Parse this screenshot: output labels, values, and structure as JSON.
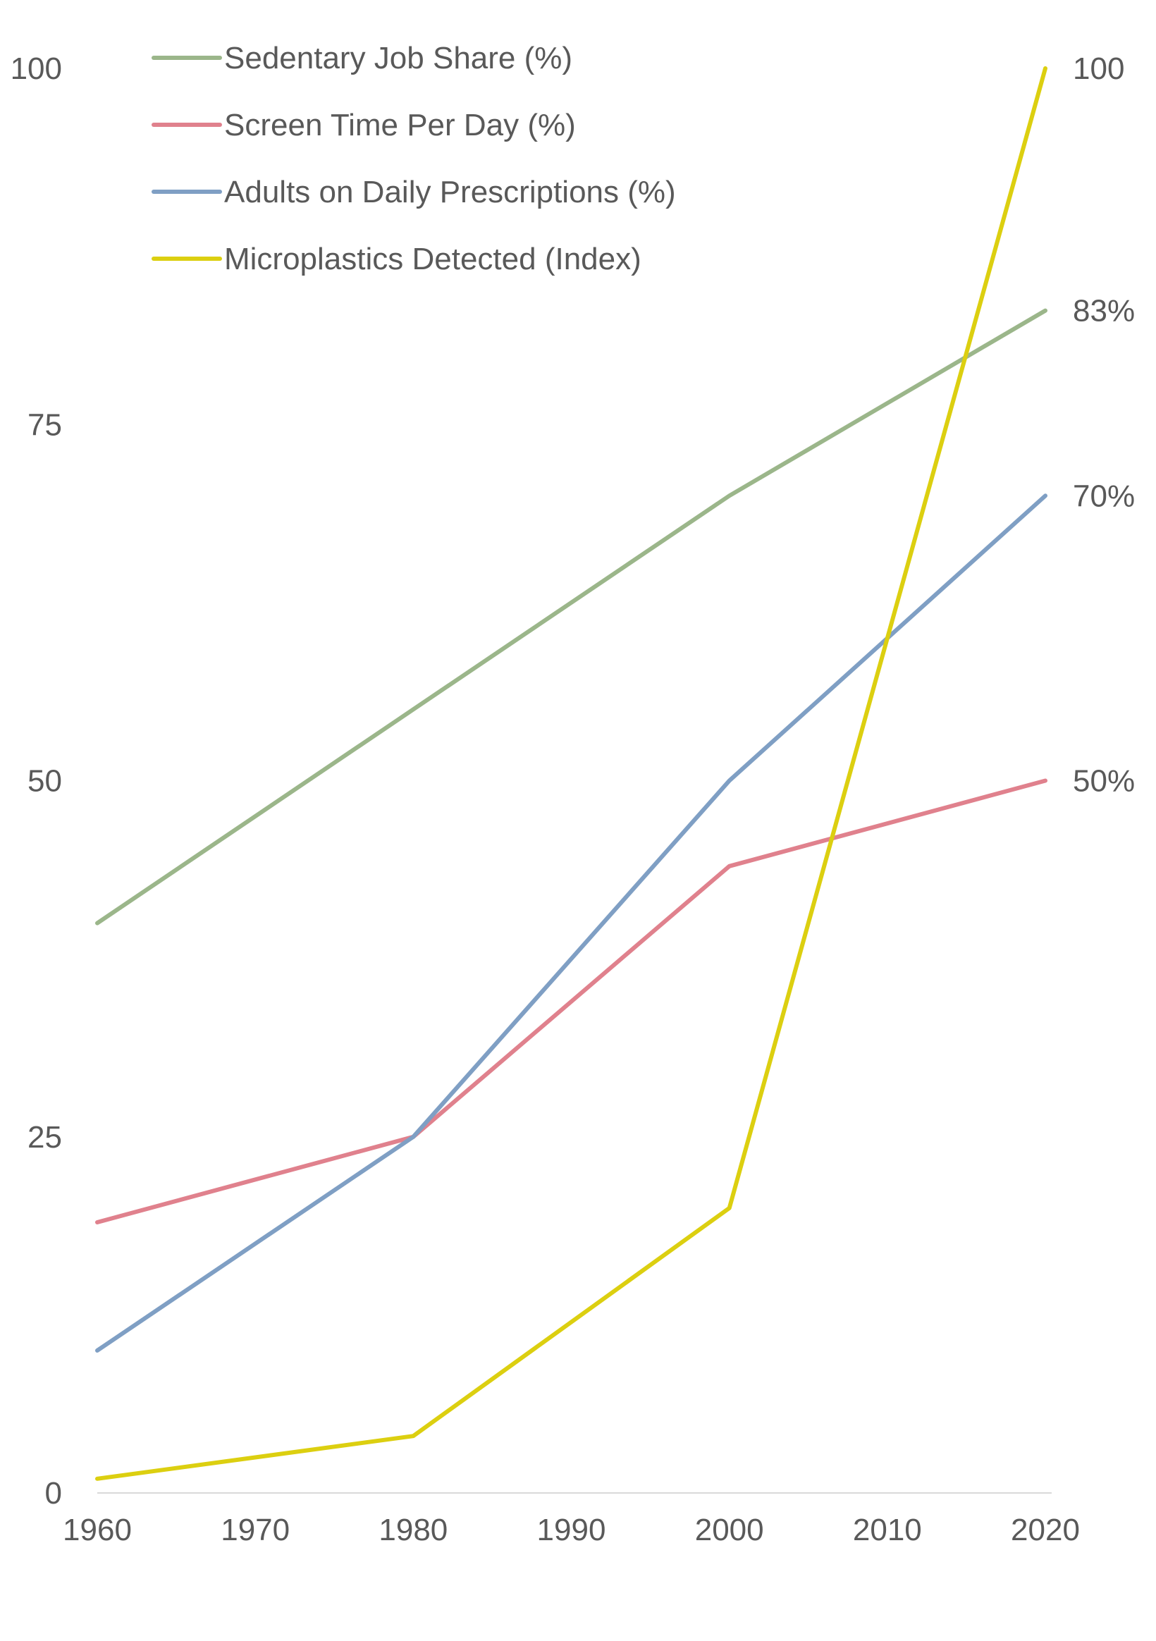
{
  "chart_data": {
    "type": "line",
    "title": "",
    "xlabel": "",
    "ylabel": "",
    "x": [
      1960,
      1980,
      2000,
      2020
    ],
    "xlim": [
      1960,
      2020
    ],
    "x_ticks": [
      "1960",
      "1970",
      "1980",
      "1990",
      "2000",
      "2010",
      "2020"
    ],
    "ylim": [
      0,
      100
    ],
    "y_ticks": [
      "0",
      "25",
      "50",
      "75",
      "100"
    ],
    "grid": false,
    "legend_position": "top-left",
    "series": [
      {
        "name": "Sedentary Job Share (%)",
        "color": "#9bb68a",
        "values": [
          40,
          55,
          70,
          83
        ],
        "end_label": "83%"
      },
      {
        "name": "Screen Time Per Day (%)",
        "color": "#e0818d",
        "values": [
          19,
          25,
          44,
          50
        ],
        "end_label": "50%"
      },
      {
        "name": "Adults on Daily Prescriptions (%)",
        "color": "#7f9fc4",
        "values": [
          10,
          25,
          50,
          70
        ],
        "end_label": "70%"
      },
      {
        "name": "Microplastics Detected (Index)",
        "color": "#dccf10",
        "values": [
          1,
          4,
          20,
          100
        ],
        "end_label": "100"
      }
    ]
  }
}
